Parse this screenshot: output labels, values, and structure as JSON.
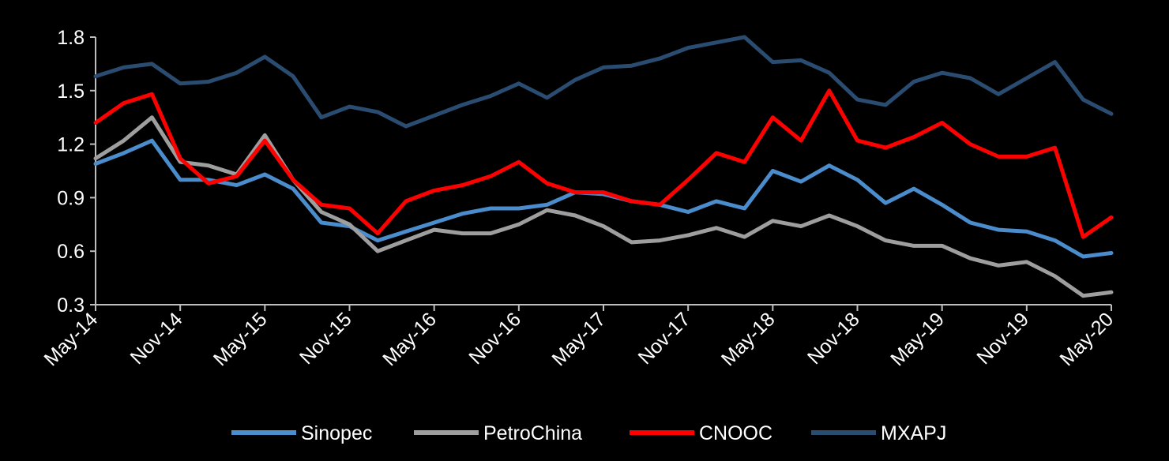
{
  "chart_data": {
    "type": "line",
    "title": "",
    "xlabel": "",
    "ylabel": "",
    "x_start": "May-14",
    "x_end": "May-20",
    "x_ticks": [
      "May-14",
      "Nov-14",
      "May-15",
      "Nov-15",
      "May-16",
      "Nov-16",
      "May-17",
      "Nov-17",
      "May-18",
      "Nov-18",
      "May-19",
      "Nov-19",
      "May-20"
    ],
    "y_ticks": [
      "1.8",
      "1.5",
      "1.2",
      "0.9",
      "0.6",
      "0.3"
    ],
    "ylim": [
      0.3,
      1.8
    ],
    "grid": false,
    "legend_position": "bottom",
    "x": [
      "May-14",
      "Jul-14",
      "Sep-14",
      "Nov-14",
      "Jan-15",
      "Mar-15",
      "May-15",
      "Jul-15",
      "Sep-15",
      "Nov-15",
      "Jan-16",
      "Mar-16",
      "May-16",
      "Jul-16",
      "Sep-16",
      "Nov-16",
      "Jan-17",
      "Mar-17",
      "May-17",
      "Jul-17",
      "Sep-17",
      "Nov-17",
      "Jan-18",
      "Mar-18",
      "May-18",
      "Jul-18",
      "Sep-18",
      "Nov-18",
      "Jan-19",
      "Mar-19",
      "May-19",
      "Jul-19",
      "Sep-19",
      "Nov-19",
      "Jan-20",
      "Mar-20",
      "May-20"
    ],
    "series": [
      {
        "name": "MXAPJ",
        "color": "#2a4c70",
        "values": [
          1.58,
          1.63,
          1.65,
          1.54,
          1.55,
          1.6,
          1.69,
          1.58,
          1.35,
          1.41,
          1.38,
          1.3,
          1.36,
          1.42,
          1.47,
          1.54,
          1.46,
          1.56,
          1.63,
          1.64,
          1.68,
          1.74,
          1.77,
          1.8,
          1.66,
          1.67,
          1.6,
          1.45,
          1.42,
          1.55,
          1.6,
          1.57,
          1.48,
          1.57,
          1.66,
          1.45,
          1.37
        ]
      },
      {
        "name": "Sinopec",
        "color": "#4a8ccc",
        "values": [
          1.09,
          1.15,
          1.22,
          1.0,
          1.0,
          0.97,
          1.03,
          0.95,
          0.76,
          0.74,
          0.66,
          0.71,
          0.76,
          0.81,
          0.84,
          0.84,
          0.86,
          0.93,
          0.92,
          0.88,
          0.86,
          0.82,
          0.88,
          0.84,
          1.05,
          0.99,
          1.08,
          1.0,
          0.87,
          0.95,
          0.86,
          0.76,
          0.72,
          0.71,
          0.66,
          0.57,
          0.59
        ]
      },
      {
        "name": "PetroChina",
        "color": "#9e9e9e",
        "values": [
          1.12,
          1.22,
          1.35,
          1.1,
          1.08,
          1.03,
          1.25,
          1.0,
          0.82,
          0.75,
          0.6,
          0.66,
          0.72,
          0.7,
          0.7,
          0.75,
          0.83,
          0.8,
          0.74,
          0.65,
          0.66,
          0.69,
          0.73,
          0.68,
          0.77,
          0.74,
          0.8,
          0.74,
          0.66,
          0.63,
          0.63,
          0.56,
          0.52,
          0.54,
          0.46,
          0.35,
          0.37
        ]
      },
      {
        "name": "CNOOC",
        "color": "#ff0000",
        "values": [
          1.32,
          1.43,
          1.48,
          1.12,
          0.98,
          1.02,
          1.22,
          1.0,
          0.86,
          0.84,
          0.7,
          0.88,
          0.94,
          0.97,
          1.02,
          1.1,
          0.98,
          0.93,
          0.93,
          0.88,
          0.86,
          1.0,
          1.15,
          1.1,
          1.35,
          1.22,
          1.5,
          1.22,
          1.18,
          1.24,
          1.32,
          1.2,
          1.13,
          1.13,
          1.18,
          0.68,
          0.79
        ]
      }
    ]
  }
}
